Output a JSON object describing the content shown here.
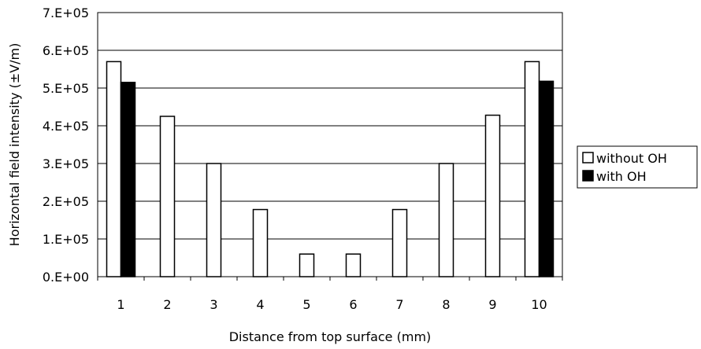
{
  "chart_data": {
    "type": "bar",
    "categories": [
      "1",
      "2",
      "3",
      "4",
      "5",
      "6",
      "7",
      "8",
      "9",
      "10"
    ],
    "series": [
      {
        "name": "without OH",
        "values": [
          570000,
          425000,
          300000,
          178000,
          60000,
          60000,
          178000,
          300000,
          428000,
          570000
        ],
        "color": "#ffffff"
      },
      {
        "name": "with OH",
        "values": [
          515000,
          null,
          null,
          null,
          null,
          null,
          null,
          null,
          null,
          518000
        ],
        "color": "#000000"
      }
    ],
    "xlabel": "Distance from top surface (mm)",
    "ylabel": "Horizontal field intensity (±V/m)",
    "ylim": [
      0,
      700000
    ],
    "yticks": [
      "0.E+00",
      "1.E+05",
      "2.E+05",
      "3.E+05",
      "4.E+05",
      "5.E+05",
      "6.E+05",
      "7.E+05"
    ],
    "grid": true,
    "legend_position": "right"
  }
}
